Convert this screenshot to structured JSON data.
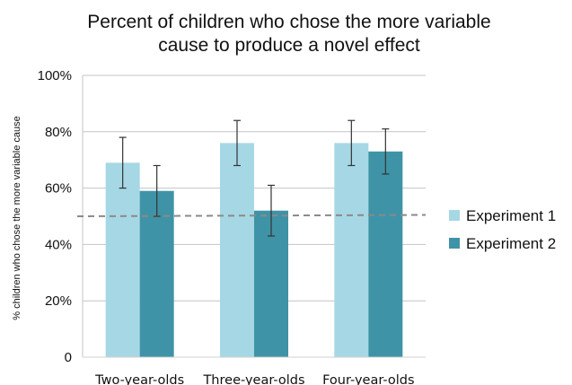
{
  "chart_data": {
    "type": "bar",
    "title_lines": [
      "Percent of children who chose the more variable",
      "cause to produce a novel effect"
    ],
    "ylabel": "% children who chose the more variable cause",
    "xlabel": "",
    "categories": [
      "Two-year-olds",
      "Three-year-olds",
      "Four-year-olds"
    ],
    "ytick_labels": [
      "0",
      "20%",
      "40%",
      "60%",
      "80%",
      "100%"
    ],
    "ylim": [
      0,
      100
    ],
    "grid": true,
    "legend_position": "right",
    "reference_line": 50,
    "series": [
      {
        "name": "Experiment 1",
        "values": [
          69,
          76,
          76
        ],
        "err_low": [
          60,
          68,
          68
        ],
        "err_high": [
          78,
          84,
          84
        ],
        "color": "#a6d7e4"
      },
      {
        "name": "Experiment 2",
        "values": [
          59,
          52,
          73
        ],
        "err_low": [
          50,
          43,
          65
        ],
        "err_high": [
          68,
          61,
          81
        ],
        "color": "#3f93a6"
      }
    ]
  }
}
